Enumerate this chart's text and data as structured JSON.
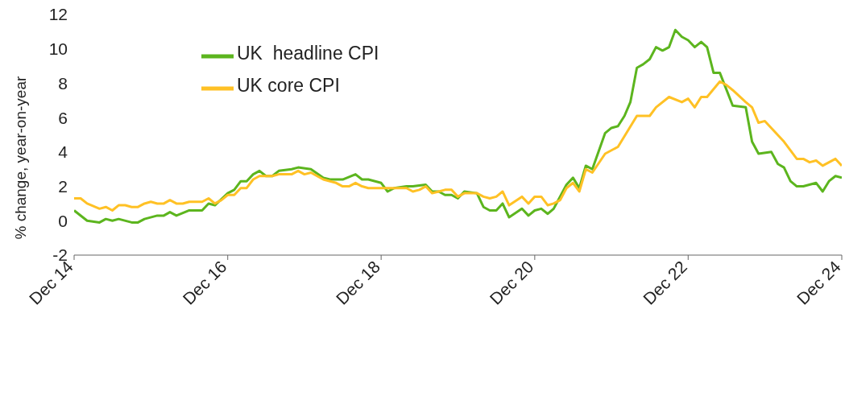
{
  "chart_data": {
    "type": "line",
    "ylabel": "% change, year-on-year",
    "xlim": [
      "2014-12",
      "2024-12"
    ],
    "xticks": [
      {
        "value": "2014-12",
        "label": "Dec 14"
      },
      {
        "value": "2016-12",
        "label": "Dec 16"
      },
      {
        "value": "2018-12",
        "label": "Dec 18"
      },
      {
        "value": "2020-12",
        "label": "Dec 20"
      },
      {
        "value": "2022-12",
        "label": "Dec 22"
      },
      {
        "value": "2024-12",
        "label": "Dec 24"
      }
    ],
    "ylim": [
      -2,
      12
    ],
    "yticks": [
      -2,
      0,
      2,
      4,
      6,
      8,
      10,
      12
    ],
    "grid": false,
    "legend": "top left",
    "marker": "none",
    "line_style": "solid",
    "series": [
      {
        "name": "UK  headline CPI",
        "color": "#5cb51e",
        "x": [
          "2014-12",
          "2015-02",
          "2015-04",
          "2015-05",
          "2015-06",
          "2015-07",
          "2015-09",
          "2015-10",
          "2015-11",
          "2016-01",
          "2016-02",
          "2016-03",
          "2016-04",
          "2016-06",
          "2016-08",
          "2016-09",
          "2016-10",
          "2016-12",
          "2017-01",
          "2017-02",
          "2017-03",
          "2017-04",
          "2017-05",
          "2017-06",
          "2017-07",
          "2017-08",
          "2017-10",
          "2017-11",
          "2018-01",
          "2018-03",
          "2018-04",
          "2018-06",
          "2018-08",
          "2018-09",
          "2018-10",
          "2018-12",
          "2019-01",
          "2019-02",
          "2019-04",
          "2019-05",
          "2019-07",
          "2019-08",
          "2019-09",
          "2019-10",
          "2019-11",
          "2019-12",
          "2020-01",
          "2020-03",
          "2020-04",
          "2020-05",
          "2020-06",
          "2020-07",
          "2020-08",
          "2020-10",
          "2020-11",
          "2020-12",
          "2021-01",
          "2021-02",
          "2021-03",
          "2021-05",
          "2021-06",
          "2021-07",
          "2021-08",
          "2021-09",
          "2021-11",
          "2021-12",
          "2022-01",
          "2022-02",
          "2022-03",
          "2022-04",
          "2022-05",
          "2022-06",
          "2022-07",
          "2022-08",
          "2022-09",
          "2022-10",
          "2022-11",
          "2022-12",
          "2023-01",
          "2023-02",
          "2023-03",
          "2023-04",
          "2023-05",
          "2023-07",
          "2023-09",
          "2023-10",
          "2023-11",
          "2024-01",
          "2024-02",
          "2024-03",
          "2024-04",
          "2024-05",
          "2024-06",
          "2024-08",
          "2024-09",
          "2024-10",
          "2024-11",
          "2024-12"
        ],
        "values": [
          0.6,
          0.0,
          -0.1,
          0.1,
          0.0,
          0.1,
          -0.1,
          -0.1,
          0.1,
          0.3,
          0.3,
          0.5,
          0.3,
          0.6,
          0.6,
          1.0,
          0.9,
          1.6,
          1.8,
          2.3,
          2.3,
          2.7,
          2.9,
          2.6,
          2.6,
          2.9,
          3.0,
          3.1,
          3.0,
          2.5,
          2.4,
          2.4,
          2.7,
          2.4,
          2.4,
          2.2,
          1.7,
          1.9,
          2.0,
          2.0,
          2.1,
          1.7,
          1.7,
          1.5,
          1.5,
          1.3,
          1.7,
          1.6,
          0.8,
          0.6,
          0.6,
          1.0,
          0.2,
          0.7,
          0.3,
          0.6,
          0.7,
          0.4,
          0.7,
          2.1,
          2.5,
          1.9,
          3.2,
          3.0,
          5.1,
          5.4,
          5.5,
          6.1,
          6.9,
          8.9,
          9.1,
          9.4,
          10.1,
          9.9,
          10.1,
          11.1,
          10.7,
          10.5,
          10.1,
          10.4,
          10.1,
          8.6,
          8.6,
          6.7,
          6.6,
          4.6,
          3.9,
          4.0,
          3.3,
          3.1,
          2.3,
          2.0,
          2.0,
          2.2,
          1.7,
          2.3,
          2.6,
          2.5
        ]
      },
      {
        "name": "UK core CPI",
        "color": "#ffc125",
        "x": [
          "2014-12",
          "2015-01",
          "2015-02",
          "2015-04",
          "2015-05",
          "2015-06",
          "2015-07",
          "2015-08",
          "2015-09",
          "2015-10",
          "2015-11",
          "2015-12",
          "2016-01",
          "2016-02",
          "2016-03",
          "2016-04",
          "2016-05",
          "2016-06",
          "2016-08",
          "2016-09",
          "2016-10",
          "2016-11",
          "2016-12",
          "2017-01",
          "2017-02",
          "2017-03",
          "2017-04",
          "2017-05",
          "2017-07",
          "2017-08",
          "2017-10",
          "2017-11",
          "2017-12",
          "2018-01",
          "2018-03",
          "2018-05",
          "2018-06",
          "2018-07",
          "2018-08",
          "2018-09",
          "2018-10",
          "2019-01",
          "2019-04",
          "2019-05",
          "2019-06",
          "2019-07",
          "2019-08",
          "2019-09",
          "2019-10",
          "2019-11",
          "2019-12",
          "2020-01",
          "2020-03",
          "2020-04",
          "2020-05",
          "2020-06",
          "2020-07",
          "2020-08",
          "2020-10",
          "2020-11",
          "2020-12",
          "2021-01",
          "2021-02",
          "2021-03",
          "2021-04",
          "2021-05",
          "2021-06",
          "2021-07",
          "2021-08",
          "2021-09",
          "2021-11",
          "2022-01",
          "2022-04",
          "2022-06",
          "2022-07",
          "2022-09",
          "2022-11",
          "2022-12",
          "2023-01",
          "2023-02",
          "2023-03",
          "2023-05",
          "2023-06",
          "2023-07",
          "2023-09",
          "2023-10",
          "2023-11",
          "2023-12",
          "2024-03",
          "2024-05",
          "2024-06",
          "2024-07",
          "2024-08",
          "2024-09",
          "2024-11",
          "2024-12"
        ],
        "values": [
          1.3,
          1.3,
          1.0,
          0.7,
          0.8,
          0.6,
          0.9,
          0.9,
          0.8,
          0.8,
          1.0,
          1.1,
          1.0,
          1.0,
          1.2,
          1.0,
          1.0,
          1.1,
          1.1,
          1.3,
          1.0,
          1.2,
          1.5,
          1.5,
          1.9,
          1.9,
          2.4,
          2.6,
          2.6,
          2.7,
          2.7,
          2.9,
          2.7,
          2.8,
          2.4,
          2.2,
          2.0,
          2.0,
          2.2,
          2.0,
          1.9,
          1.9,
          1.9,
          1.7,
          1.8,
          2.0,
          1.6,
          1.7,
          1.8,
          1.8,
          1.4,
          1.6,
          1.6,
          1.4,
          1.3,
          1.4,
          1.7,
          0.9,
          1.4,
          1.0,
          1.4,
          1.4,
          0.9,
          1.0,
          1.2,
          1.9,
          2.2,
          1.7,
          3.0,
          2.8,
          3.9,
          4.3,
          6.1,
          6.1,
          6.6,
          7.2,
          6.9,
          7.1,
          6.6,
          7.2,
          7.2,
          8.1,
          7.9,
          7.6,
          6.9,
          6.6,
          5.7,
          5.8,
          4.6,
          3.6,
          3.6,
          3.4,
          3.5,
          3.2,
          3.6,
          3.2
        ]
      }
    ]
  }
}
